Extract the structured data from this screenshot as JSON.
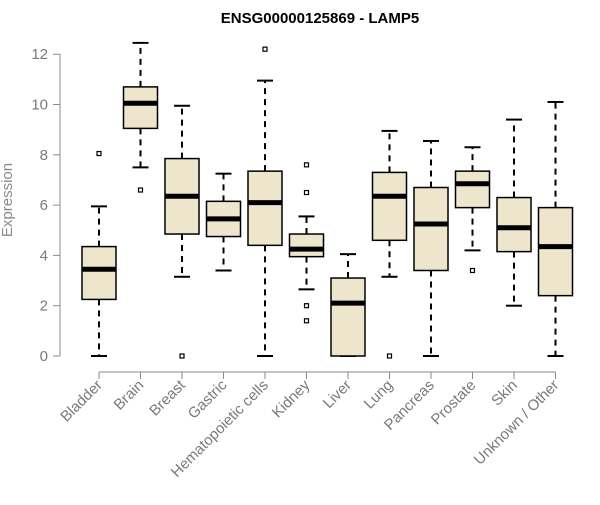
{
  "chart_data": {
    "type": "boxplot",
    "title": "ENSG00000125869 - LAMP5",
    "ylabel": "Expression",
    "xlabel": "",
    "ylim": [
      0,
      12.5
    ],
    "yticks": [
      0,
      2,
      4,
      6,
      8,
      10,
      12
    ],
    "categories": [
      "Bladder",
      "Brain",
      "Breast",
      "Gastric",
      "Hematopoietic cells",
      "Kidney",
      "Liver",
      "Lung",
      "Pancreas",
      "Prostate",
      "Skin",
      "Unknown / Other"
    ],
    "boxes": [
      {
        "category": "Bladder",
        "whisker_low": 0,
        "q1": 2.25,
        "median": 3.45,
        "q3": 4.35,
        "whisker_high": 5.95,
        "outliers": [
          8.05
        ]
      },
      {
        "category": "Brain",
        "whisker_low": 7.5,
        "q1": 9.05,
        "median": 10.05,
        "q3": 10.7,
        "whisker_high": 12.45,
        "outliers": [
          6.6
        ]
      },
      {
        "category": "Breast",
        "whisker_low": 3.15,
        "q1": 4.85,
        "median": 6.35,
        "q3": 7.85,
        "whisker_high": 9.95,
        "outliers": [
          0
        ]
      },
      {
        "category": "Gastric",
        "whisker_low": 3.4,
        "q1": 4.75,
        "median": 5.45,
        "q3": 6.15,
        "whisker_high": 7.25,
        "outliers": []
      },
      {
        "category": "Hematopoietic cells",
        "whisker_low": 0,
        "q1": 4.4,
        "median": 6.1,
        "q3": 7.35,
        "whisker_high": 10.95,
        "outliers": [
          12.2
        ]
      },
      {
        "category": "Kidney",
        "whisker_low": 2.65,
        "q1": 3.95,
        "median": 4.25,
        "q3": 4.85,
        "whisker_high": 5.55,
        "outliers": [
          7.6,
          6.5,
          2.0,
          1.4
        ]
      },
      {
        "category": "Liver",
        "whisker_low": 0,
        "q1": 0,
        "median": 2.1,
        "q3": 3.1,
        "whisker_high": 4.05,
        "outliers": []
      },
      {
        "category": "Lung",
        "whisker_low": 3.15,
        "q1": 4.6,
        "median": 6.35,
        "q3": 7.3,
        "whisker_high": 8.95,
        "outliers": [
          0
        ]
      },
      {
        "category": "Pancreas",
        "whisker_low": 0,
        "q1": 3.4,
        "median": 5.25,
        "q3": 6.7,
        "whisker_high": 8.55,
        "outliers": []
      },
      {
        "category": "Prostate",
        "whisker_low": 4.2,
        "q1": 5.9,
        "median": 6.85,
        "q3": 7.35,
        "whisker_high": 8.3,
        "outliers": [
          3.4
        ]
      },
      {
        "category": "Skin",
        "whisker_low": 2.0,
        "q1": 4.15,
        "median": 5.1,
        "q3": 6.3,
        "whisker_high": 9.4,
        "outliers": []
      },
      {
        "category": "Unknown / Other",
        "whisker_low": 0,
        "q1": 2.4,
        "median": 4.35,
        "q3": 5.9,
        "whisker_high": 10.1,
        "outliers": []
      }
    ],
    "colors": {
      "box_fill": "#ede6cc",
      "box_stroke": "#000000",
      "axis": "#8a8a8a",
      "tick_text": "#7a7a7a"
    }
  }
}
